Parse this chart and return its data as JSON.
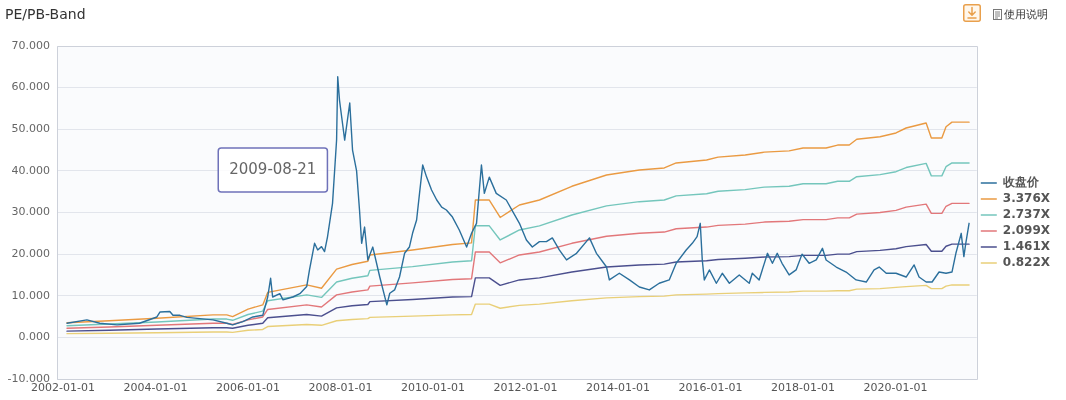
{
  "chart_data": {
    "type": "line",
    "title": "PE/PB-Band",
    "x": [
      "2002-02-01",
      "2003-01-01",
      "2004-01-12",
      "2005-03-30",
      "2005-07-17",
      "2005-09-01",
      "2006-01-01",
      "2006-04-27",
      "2006-06-05",
      "2007-04-09",
      "2007-08-04",
      "2007-12-01",
      "2008-04-01",
      "2008-08-04",
      "2008-08-20",
      "2009-07-23",
      "2010-06-03",
      "2010-11-01",
      "2010-12-01",
      "2011-03-21",
      "2011-06-15",
      "2011-11-14",
      "2012-04-20",
      "2013-01-01",
      "2013-10-02",
      "2014-06-18",
      "2015-01-01",
      "2015-04-05",
      "2015-12-01",
      "2016-03-01",
      "2016-10-01",
      "2017-03-01",
      "2017-09-13",
      "2018-01-01",
      "2018-07-02",
      "2018-10-01",
      "2019-01-01",
      "2019-03-01",
      "2019-09-01",
      "2020-01-05",
      "2020-03-25",
      "2020-08-30",
      "2020-10-10",
      "2021-01-01",
      "2021-02-03",
      "2021-03-22",
      "2021-08-04"
    ],
    "xlim": [
      "2001-11-14",
      "2021-10-04"
    ],
    "xticks": [
      "2002-01-01",
      "2004-01-01",
      "2006-01-01",
      "2008-01-01",
      "2010-01-01",
      "2012-01-01",
      "2014-01-01",
      "2016-01-01",
      "2018-01-01",
      "2020-01-01"
    ],
    "ylim": [
      -10,
      70
    ],
    "yticks": [
      {
        "value": -10,
        "label": "-10.000"
      },
      {
        "value": 0,
        "label": "0.000"
      },
      {
        "value": 10,
        "label": "10.000"
      },
      {
        "value": 20,
        "label": "20.000"
      },
      {
        "value": 30,
        "label": "30.000"
      },
      {
        "value": 40,
        "label": "40.000"
      },
      {
        "value": 50,
        "label": "50.000"
      },
      {
        "value": 60,
        "label": "60.000"
      },
      {
        "value": 70,
        "label": "70.000"
      }
    ],
    "grid": "y",
    "legend": "right",
    "annotations": [
      "2009-08-21",
      "使用说明"
    ],
    "series": [
      {
        "name": "收盘价",
        "color": "#2b6f9c",
        "x": [
          "2002-02-01",
          "2002-07-08",
          "2002-10-18",
          "2003-03-03",
          "2003-08-28",
          "2004-01-12",
          "2004-02-06",
          "2004-04-23",
          "2004-05-18",
          "2004-07-12",
          "2004-09-05",
          "2004-12-17",
          "2005-03-30",
          "2005-07-17",
          "2005-09-01",
          "2005-11-21",
          "2006-02-08",
          "2006-04-27",
          "2006-06-05",
          "2006-06-28",
          "2006-07-14",
          "2006-09-09",
          "2006-10-04",
          "2006-12-20",
          "2007-02-14",
          "2007-04-09",
          "2007-05-01",
          "2007-06-10",
          "2007-07-05",
          "2007-08-04",
          "2007-08-28",
          "2007-09-20",
          "2007-10-30",
          "2007-12-01",
          "2007-12-10",
          "2007-12-24",
          "2008-01-10",
          "2008-02-03",
          "2008-03-14",
          "2008-04-05",
          "2008-05-07",
          "2008-05-30",
          "2008-06-16",
          "2008-07-09",
          "2008-08-04",
          "2008-09-12",
          "2008-11-06",
          "2009-01-01",
          "2009-01-24",
          "2009-03-03",
          "2009-04-11",
          "2009-05-21",
          "2009-06-28",
          "2009-07-23",
          "2009-08-24",
          "2009-09-16",
          "2009-10-11",
          "2009-11-11",
          "2009-12-20",
          "2010-01-30",
          "2010-03-10",
          "2010-04-16",
          "2010-06-03",
          "2010-07-27",
          "2010-09-23",
          "2010-11-01",
          "2010-12-10",
          "2011-01-18",
          "2011-02-10",
          "2011-03-21",
          "2011-05-15",
          "2011-08-02",
          "2011-11-14",
          "2012-01-08",
          "2012-02-24",
          "2012-04-20",
          "2012-06-14",
          "2012-07-31",
          "2012-09-24",
          "2012-11-20",
          "2013-02-07",
          "2013-05-20",
          "2013-07-14",
          "2013-10-02",
          "2013-10-24",
          "2014-01-11",
          "2014-04-01",
          "2014-06-18",
          "2014-09-05",
          "2014-11-22",
          "2015-02-09",
          "2015-04-05",
          "2015-06-23",
          "2015-08-10",
          "2015-09-17",
          "2015-10-12",
          "2015-10-28",
          "2015-11-13",
          "2015-12-23",
          "2016-02-16",
          "2016-04-03",
          "2016-05-29",
          "2016-08-15",
          "2016-11-02",
          "2016-11-26",
          "2017-01-19",
          "2017-03-26",
          "2017-05-04",
          "2017-06-11",
          "2017-07-19",
          "2017-09-13",
          "2017-11-07",
          "2017-12-24",
          "2018-02-18",
          "2018-04-15",
          "2018-06-03",
          "2018-07-02",
          "2018-09-20",
          "2018-12-07",
          "2019-02-24",
          "2019-05-15",
          "2019-07-16",
          "2019-08-25",
          "2019-10-20",
          "2020-01-05",
          "2020-03-25",
          "2020-05-27",
          "2020-07-05",
          "2020-08-30",
          "2020-10-16",
          "2020-12-10",
          "2021-02-03",
          "2021-03-22",
          "2021-04-22",
          "2021-06-03",
          "2021-06-24",
          "2021-07-09",
          "2021-08-04"
        ],
        "values": [
          3.4,
          4.2,
          3.4,
          3.0,
          3.4,
          4.9,
          6.1,
          6.2,
          5.3,
          5.3,
          4.8,
          4.5,
          4.2,
          3.4,
          3.0,
          3.8,
          4.9,
          5.3,
          9.7,
          14.2,
          9.7,
          10.5,
          9.0,
          9.7,
          10.5,
          12.2,
          16.2,
          22.6,
          21.0,
          21.8,
          20.6,
          24.1,
          32.2,
          47.4,
          62.6,
          57.0,
          53.0,
          47.4,
          56.3,
          45.0,
          40.0,
          30.6,
          22.6,
          26.5,
          18.6,
          21.7,
          14.5,
          7.8,
          10.6,
          11.4,
          14.5,
          20.2,
          21.7,
          25.0,
          28.2,
          34.6,
          41.4,
          38.5,
          35.4,
          33.0,
          31.3,
          30.6,
          28.9,
          25.8,
          21.7,
          25.0,
          27.4,
          41.4,
          34.6,
          38.5,
          34.6,
          33.0,
          27.4,
          23.4,
          21.7,
          23.0,
          23.0,
          23.9,
          21.0,
          18.6,
          20.2,
          23.9,
          20.2,
          16.9,
          13.8,
          15.4,
          13.8,
          12.1,
          11.4,
          13.0,
          13.8,
          17.8,
          21.0,
          22.6,
          24.2,
          27.4,
          18.6,
          13.8,
          16.2,
          13.0,
          15.4,
          13.0,
          15.0,
          13.0,
          15.4,
          13.8,
          20.2,
          17.8,
          20.2,
          17.8,
          15.0,
          16.2,
          20.0,
          17.8,
          18.6,
          21.4,
          18.6,
          16.9,
          15.7,
          13.8,
          13.3,
          16.2,
          16.9,
          15.4,
          15.4,
          14.5,
          17.4,
          14.5,
          13.3,
          13.3,
          15.7,
          15.4,
          15.7,
          20.2,
          25.0,
          19.4,
          22.6,
          27.4
        ]
      },
      {
        "name": "3.376X",
        "color": "#ea9a42",
        "values": [
          3.5,
          4.0,
          4.6,
          5.4,
          5.4,
          5.0,
          6.8,
          7.8,
          10.8,
          12.6,
          11.8,
          16.4,
          17.5,
          18.3,
          19.8,
          21.0,
          22.3,
          22.7,
          33.0,
          33.0,
          28.8,
          31.8,
          33.0,
          36.3,
          39.0,
          40.2,
          40.7,
          41.9,
          42.6,
          43.3,
          43.8,
          44.5,
          44.8,
          45.5,
          45.5,
          46.2,
          46.2,
          47.6,
          48.2,
          49.1,
          50.3,
          51.5,
          47.9,
          47.9,
          50.6,
          51.7,
          51.7
        ]
      },
      {
        "name": "2.737X",
        "color": "#74c6bc",
        "values": [
          2.8,
          3.2,
          3.7,
          4.4,
          4.4,
          4.1,
          5.5,
          6.3,
          8.8,
          10.2,
          9.6,
          13.3,
          14.2,
          14.8,
          16.1,
          17.0,
          18.1,
          18.4,
          26.8,
          26.8,
          23.4,
          25.8,
          26.8,
          29.4,
          31.6,
          32.6,
          33.0,
          34.0,
          34.5,
          35.1,
          35.5,
          36.1,
          36.3,
          36.9,
          36.9,
          37.5,
          37.5,
          38.6,
          39.1,
          39.8,
          40.8,
          41.8,
          38.8,
          38.8,
          41.0,
          41.9,
          41.9
        ]
      },
      {
        "name": "2.099X",
        "color": "#e2777a",
        "values": [
          2.2,
          2.5,
          2.9,
          3.4,
          3.4,
          3.1,
          4.2,
          4.9,
          6.7,
          7.8,
          7.3,
          10.2,
          10.9,
          11.4,
          12.3,
          13.1,
          13.9,
          14.1,
          20.5,
          20.5,
          17.9,
          19.8,
          20.5,
          22.6,
          24.3,
          25.0,
          25.3,
          26.1,
          26.5,
          26.9,
          27.2,
          27.7,
          27.9,
          28.3,
          28.3,
          28.7,
          28.7,
          29.6,
          30.0,
          30.5,
          31.3,
          32.0,
          29.8,
          29.8,
          31.5,
          32.2,
          32.2
        ]
      },
      {
        "name": "1.461X",
        "color": "#4b4f8e",
        "values": [
          1.5,
          1.7,
          2.0,
          2.3,
          2.3,
          2.2,
          2.9,
          3.4,
          4.7,
          5.5,
          5.1,
          7.1,
          7.6,
          7.9,
          8.6,
          9.1,
          9.7,
          9.8,
          14.3,
          14.3,
          12.5,
          13.8,
          14.3,
          15.7,
          16.9,
          17.4,
          17.6,
          18.1,
          18.4,
          18.7,
          19.0,
          19.3,
          19.4,
          19.7,
          19.7,
          20.0,
          20.0,
          20.6,
          20.9,
          21.3,
          21.8,
          22.3,
          20.7,
          20.7,
          21.9,
          22.4,
          22.4
        ]
      },
      {
        "name": "0.822X",
        "color": "#e9cf78",
        "values": [
          0.9,
          1.0,
          1.1,
          1.3,
          1.3,
          1.2,
          1.7,
          1.9,
          2.6,
          3.1,
          2.9,
          4.0,
          4.3,
          4.5,
          4.8,
          5.1,
          5.4,
          5.5,
          8.0,
          8.0,
          7.0,
          7.7,
          8.0,
          8.8,
          9.5,
          9.8,
          9.9,
          10.2,
          10.4,
          10.5,
          10.7,
          10.8,
          10.9,
          11.1,
          11.1,
          11.2,
          11.2,
          11.6,
          11.7,
          12.0,
          12.2,
          12.5,
          11.7,
          11.7,
          12.3,
          12.6,
          12.6
        ]
      }
    ]
  }
}
